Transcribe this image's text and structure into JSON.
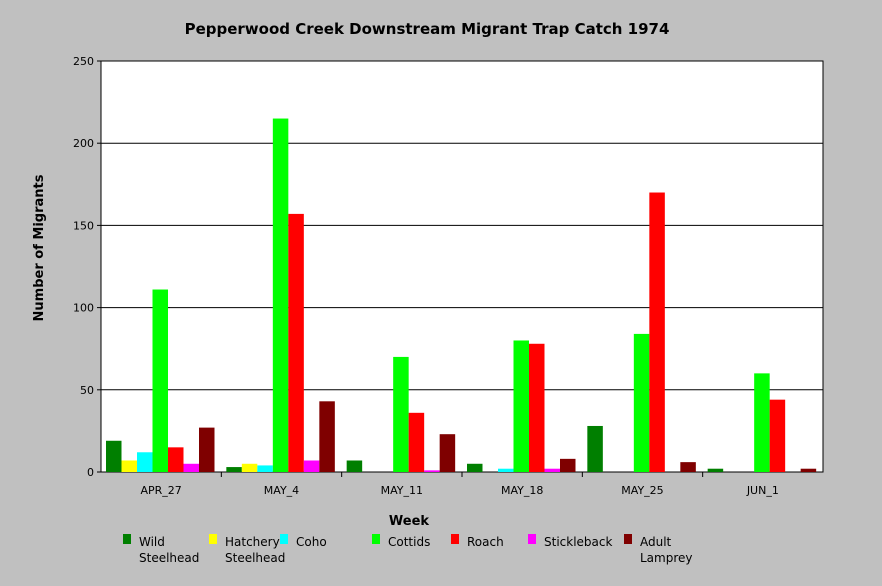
{
  "chart_data": {
    "type": "bar",
    "title": "Pepperwood Creek Downstream Migrant Trap Catch 1974",
    "xlabel": "Week",
    "ylabel": "Number of Migrants",
    "ylim": [
      0,
      250
    ],
    "yticks": [
      0,
      50,
      100,
      150,
      200,
      250
    ],
    "grid": true,
    "legend_position": "bottom",
    "categories": [
      "APR_27",
      "MAY_4",
      "MAY_11",
      "MAY_18",
      "MAY_25",
      "JUN_1"
    ],
    "series": [
      {
        "name": "Wild Steelhead",
        "legend_lines": [
          "Wild",
          "Steelhead"
        ],
        "color": "#007f00",
        "values": [
          19,
          3,
          7,
          5,
          28,
          2
        ]
      },
      {
        "name": "Hatchery Steelhead",
        "legend_lines": [
          "Hatchery",
          "Steelhead"
        ],
        "color": "#ffff00",
        "values": [
          7,
          5,
          0,
          0,
          0,
          0
        ]
      },
      {
        "name": "Coho",
        "legend_lines": [
          "Coho"
        ],
        "color": "#00ffff",
        "values": [
          12,
          4,
          0,
          2,
          0,
          0
        ]
      },
      {
        "name": "Cottids",
        "legend_lines": [
          "Cottids"
        ],
        "color": "#00ff00",
        "values": [
          111,
          215,
          70,
          80,
          84,
          60
        ]
      },
      {
        "name": "Roach",
        "legend_lines": [
          "Roach"
        ],
        "color": "#ff0000",
        "values": [
          15,
          157,
          36,
          78,
          170,
          44
        ]
      },
      {
        "name": "Stickleback",
        "legend_lines": [
          "Stickleback"
        ],
        "color": "#ff00ff",
        "values": [
          5,
          7,
          1,
          2,
          0,
          0
        ]
      },
      {
        "name": "Adult Lamprey",
        "legend_lines": [
          "Adult",
          "Lamprey"
        ],
        "color": "#7f0000",
        "values": [
          27,
          43,
          23,
          8,
          6,
          2
        ]
      }
    ]
  }
}
